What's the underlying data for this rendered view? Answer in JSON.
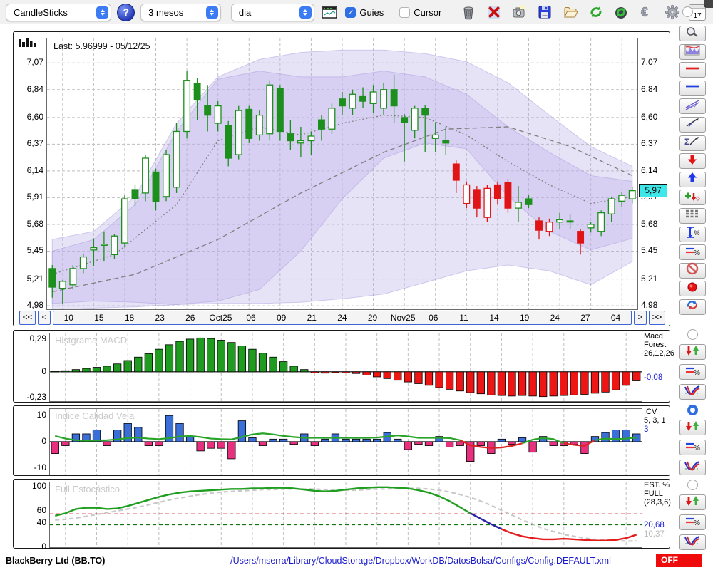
{
  "toolbar": {
    "chart_type_select": {
      "value": "CandleSticks"
    },
    "help_button_label": "?",
    "range_select": {
      "value": "3 mesos"
    },
    "interval_select": {
      "value": "dia"
    },
    "guies_checkbox": {
      "label": "Guies",
      "checked": true
    },
    "cursor_checkbox": {
      "label": "Cursor",
      "checked": false
    },
    "icon_buttons": [
      "mini-chart",
      "trash",
      "delete",
      "snapshot",
      "save",
      "open-file",
      "refresh",
      "reload-data",
      "euro",
      "settings",
      "calendar"
    ],
    "calendar_day": "17",
    "checkmark": "✓"
  },
  "sidebar": {
    "tools": [
      "zoom",
      "indicator-window",
      "red-horizontal-line",
      "blue-horizontal-line",
      "channel-lines",
      "trend-line",
      "sum-trend-line",
      "arrow-down-marker",
      "arrow-up-marker",
      "add-signal-marker",
      "dashed-levels",
      "vertical-measure-percent",
      "percent-levels",
      "disable",
      "record",
      "sync"
    ],
    "panel_controls": [
      {
        "panel": "price",
        "selected": false
      },
      {
        "panel": "macd",
        "selected": false,
        "tools": [
          "signal-arrows",
          "percent-levels",
          "indicator-style"
        ]
      },
      {
        "panel": "icv",
        "selected": true,
        "tools": [
          "signal-arrows",
          "percent-levels",
          "indicator-style"
        ]
      },
      {
        "panel": "stoch",
        "selected": false,
        "tools": [
          "signal-arrows",
          "percent-levels",
          "indicator-style"
        ]
      }
    ]
  },
  "statusbar": {
    "symbol": "BlackBerry Ltd (BB.TO)",
    "config_path": "/Users/mserra/Library/CloudStorage/Dropbox/WorkDB/DatosBolsa/Configs/Config.DEFAULT.xml",
    "off_label": "OFF"
  },
  "chart_data": [
    {
      "id": "price",
      "type": "candlestick",
      "last_label": "Last: 5.96999 - 05/12/25",
      "badge": {
        "text": "5,97",
        "value": 5.97
      },
      "ylim": [
        4.95,
        7.28
      ],
      "yticks": [
        [
          "7,07",
          7.07
        ],
        [
          "6,84",
          6.84
        ],
        [
          "6,60",
          6.6
        ],
        [
          "6,37",
          6.37
        ],
        [
          "6,14",
          6.14
        ],
        [
          "5,91",
          5.91
        ],
        [
          "5,68",
          5.68
        ],
        [
          "5,45",
          5.45
        ],
        [
          "5,21",
          5.21
        ],
        [
          "4,98",
          4.98
        ]
      ],
      "xticks": [
        "10",
        "15",
        "18",
        "23",
        "26",
        "Oct25",
        "06",
        "09",
        "21",
        "24",
        "29",
        "Nov25",
        "06",
        "11",
        "14",
        "19",
        "24",
        "27",
        "04"
      ],
      "nav": {
        "first": "<<",
        "prev": "<",
        "next": ">",
        "last": ">>"
      },
      "up_color": "#1d8f1d",
      "down_color": "#e01414",
      "band_color": "#b9aee8",
      "band_edge_color": "#a99ee0",
      "band_outer": [
        [
          0,
          5.55,
          4.94
        ],
        [
          4,
          5.62,
          4.96
        ],
        [
          8,
          5.92,
          4.97
        ],
        [
          12,
          6.55,
          4.99
        ],
        [
          16,
          6.95,
          5.0
        ],
        [
          20,
          7.1,
          5.0
        ],
        [
          24,
          7.16,
          5.01
        ],
        [
          28,
          7.18,
          5.04
        ],
        [
          32,
          7.18,
          5.08
        ],
        [
          36,
          7.15,
          5.18
        ],
        [
          40,
          7.08,
          5.28
        ],
        [
          44,
          6.9,
          5.33
        ],
        [
          48,
          6.62,
          5.28
        ],
        [
          52,
          6.35,
          5.16
        ],
        [
          56,
          6.18,
          5.36
        ]
      ],
      "band_inner": [
        [
          0,
          5.45,
          5.0
        ],
        [
          4,
          5.55,
          5.02
        ],
        [
          8,
          5.85,
          5.01
        ],
        [
          12,
          6.48,
          4.99
        ],
        [
          16,
          6.93,
          5.02
        ],
        [
          20,
          7.0,
          5.12
        ],
        [
          24,
          6.95,
          5.45
        ],
        [
          28,
          6.95,
          5.9
        ],
        [
          32,
          7.0,
          6.25
        ],
        [
          36,
          6.95,
          6.38
        ],
        [
          40,
          6.8,
          6.33
        ],
        [
          44,
          6.52,
          5.92
        ],
        [
          48,
          6.3,
          5.62
        ],
        [
          52,
          6.1,
          5.46
        ],
        [
          56,
          6.05,
          5.56
        ]
      ],
      "ma_slow": [
        [
          0,
          5.1
        ],
        [
          8,
          5.25
        ],
        [
          16,
          5.55
        ],
        [
          24,
          5.95
        ],
        [
          32,
          6.3
        ],
        [
          38,
          6.5
        ],
        [
          44,
          6.52
        ],
        [
          50,
          6.35
        ],
        [
          56,
          6.1
        ]
      ],
      "ma_fast": [
        [
          0,
          5.25
        ],
        [
          6,
          5.42
        ],
        [
          12,
          5.85
        ],
        [
          16,
          6.4
        ],
        [
          20,
          6.52
        ],
        [
          24,
          6.45
        ],
        [
          28,
          6.55
        ],
        [
          32,
          6.62
        ],
        [
          36,
          6.6
        ],
        [
          40,
          6.45
        ],
        [
          44,
          6.22
        ],
        [
          48,
          6.02
        ],
        [
          52,
          5.86
        ],
        [
          56,
          5.92
        ]
      ],
      "candles": [
        [
          5.3,
          5.33,
          5.05,
          5.14,
          "G"
        ],
        [
          5.13,
          5.2,
          5.0,
          5.19,
          "g"
        ],
        [
          5.16,
          5.33,
          5.12,
          5.3,
          "g"
        ],
        [
          5.3,
          5.43,
          5.26,
          5.4,
          "g"
        ],
        [
          5.46,
          5.56,
          5.32,
          5.48,
          "g"
        ],
        [
          5.5,
          5.62,
          5.36,
          5.51,
          "g"
        ],
        [
          5.42,
          5.6,
          5.38,
          5.58,
          "g"
        ],
        [
          5.52,
          5.93,
          5.48,
          5.9,
          "g"
        ],
        [
          5.98,
          6.02,
          5.84,
          5.9,
          "G"
        ],
        [
          5.95,
          6.28,
          5.88,
          6.25,
          "g"
        ],
        [
          6.13,
          6.16,
          5.8,
          5.88,
          "G"
        ],
        [
          5.92,
          6.32,
          5.88,
          6.28,
          "g"
        ],
        [
          6.0,
          6.55,
          5.95,
          6.48,
          "g"
        ],
        [
          6.48,
          7.0,
          6.42,
          6.92,
          "g"
        ],
        [
          6.89,
          6.94,
          6.58,
          6.75,
          "G"
        ],
        [
          6.7,
          6.88,
          6.48,
          6.62,
          "G"
        ],
        [
          6.55,
          6.74,
          6.48,
          6.7,
          "g"
        ],
        [
          6.53,
          6.57,
          6.18,
          6.25,
          "G"
        ],
        [
          6.28,
          6.7,
          6.24,
          6.66,
          "g"
        ],
        [
          6.67,
          6.7,
          6.38,
          6.42,
          "G"
        ],
        [
          6.45,
          6.66,
          6.4,
          6.62,
          "g"
        ],
        [
          6.46,
          6.92,
          6.4,
          6.88,
          "g"
        ],
        [
          6.85,
          6.88,
          6.4,
          6.48,
          "G"
        ],
        [
          6.46,
          6.58,
          6.32,
          6.4,
          "G"
        ],
        [
          6.38,
          6.52,
          6.26,
          6.4,
          "g"
        ],
        [
          6.4,
          6.48,
          6.28,
          6.44,
          "g"
        ],
        [
          6.58,
          6.62,
          6.4,
          6.5,
          "G"
        ],
        [
          6.5,
          6.72,
          6.46,
          6.68,
          "g"
        ],
        [
          6.76,
          6.82,
          6.62,
          6.7,
          "G"
        ],
        [
          6.68,
          6.84,
          6.62,
          6.8,
          "g"
        ],
        [
          6.78,
          6.86,
          6.68,
          6.74,
          "G"
        ],
        [
          6.72,
          6.88,
          6.64,
          6.82,
          "g"
        ],
        [
          6.68,
          6.9,
          6.62,
          6.84,
          "g"
        ],
        [
          6.84,
          6.97,
          6.55,
          6.7,
          "G"
        ],
        [
          6.6,
          6.63,
          6.22,
          6.56,
          "G"
        ],
        [
          6.49,
          6.7,
          6.42,
          6.68,
          "g"
        ],
        [
          6.68,
          6.71,
          6.3,
          6.62,
          "G"
        ],
        [
          6.45,
          6.56,
          6.3,
          6.42,
          "g"
        ],
        [
          6.4,
          6.52,
          6.28,
          6.38,
          "G"
        ],
        [
          6.2,
          6.23,
          5.95,
          6.06,
          "R"
        ],
        [
          5.86,
          6.05,
          5.82,
          6.02,
          "r"
        ],
        [
          5.98,
          6.01,
          5.74,
          5.82,
          "R"
        ],
        [
          5.74,
          6.02,
          5.7,
          5.99,
          "r"
        ],
        [
          6.02,
          6.05,
          5.85,
          5.9,
          "R"
        ],
        [
          6.04,
          6.07,
          5.78,
          5.82,
          "R"
        ],
        [
          5.82,
          6.01,
          5.7,
          5.87,
          "g"
        ],
        [
          5.9,
          5.93,
          5.82,
          5.85,
          "G"
        ],
        [
          5.71,
          5.74,
          5.55,
          5.63,
          "R"
        ],
        [
          5.62,
          5.73,
          5.58,
          5.7,
          "r"
        ],
        [
          5.7,
          5.78,
          5.64,
          5.72,
          "g"
        ],
        [
          5.71,
          5.77,
          5.64,
          5.7,
          "G"
        ],
        [
          5.62,
          5.64,
          5.42,
          5.52,
          "R"
        ],
        [
          5.65,
          5.7,
          5.61,
          5.68,
          "g"
        ],
        [
          5.62,
          5.8,
          5.58,
          5.78,
          "g"
        ],
        [
          5.77,
          5.92,
          5.7,
          5.9,
          "g"
        ],
        [
          5.88,
          5.96,
          5.83,
          5.93,
          "g"
        ],
        [
          5.9,
          6.0,
          5.86,
          5.97,
          "g"
        ]
      ]
    },
    {
      "id": "macd",
      "type": "bar",
      "watermark": "Histgrama MACD",
      "label1": "Macd",
      "label2": "Forest",
      "label3": "26,12,26",
      "value": "-0,08",
      "ylim": [
        -0.26,
        0.34
      ],
      "yticks": [
        [
          "0,29",
          0.29
        ],
        [
          "0",
          0
        ],
        [
          "-0,23",
          -0.23
        ]
      ],
      "pos_color": "#1f9c1f",
      "neg_color": "#ee1515",
      "values": [
        0.005,
        0.01,
        0.02,
        0.03,
        0.04,
        0.05,
        0.07,
        0.1,
        0.13,
        0.16,
        0.2,
        0.24,
        0.27,
        0.29,
        0.3,
        0.295,
        0.28,
        0.26,
        0.23,
        0.2,
        0.165,
        0.13,
        0.09,
        0.05,
        0.02,
        -0.01,
        -0.012,
        -0.008,
        -0.01,
        -0.015,
        -0.03,
        -0.045,
        -0.06,
        -0.075,
        -0.09,
        -0.105,
        -0.12,
        -0.14,
        -0.155,
        -0.17,
        -0.185,
        -0.195,
        -0.205,
        -0.21,
        -0.215,
        -0.21,
        -0.215,
        -0.22,
        -0.215,
        -0.21,
        -0.205,
        -0.2,
        -0.19,
        -0.18,
        -0.16,
        -0.12,
        -0.08
      ]
    },
    {
      "id": "icv",
      "type": "bar",
      "watermark": "Indice Calidad Vela",
      "label1": "ICV",
      "label2": "5, 3, 1",
      "value": "3",
      "ylim": [
        -12.5,
        12.5
      ],
      "yticks": [
        [
          "10",
          10
        ],
        [
          "0",
          0
        ],
        [
          "-10",
          -10
        ]
      ],
      "pos_color": "#3a6fd8",
      "neg_color": "#e8307e",
      "line_color": "#28a428",
      "line_neg_color": "#dd2222",
      "bars": [
        -4.5,
        -1.5,
        3,
        3,
        4.5,
        -1.5,
        4.5,
        7,
        5.5,
        -1.5,
        -1.5,
        10,
        7,
        2,
        -3.5,
        -2.5,
        -2.5,
        -6.5,
        8,
        1.5,
        -1.5,
        1,
        1,
        -1,
        3,
        -1.5,
        1,
        3,
        1,
        1,
        1,
        1,
        3.5,
        1,
        -3,
        -1,
        -1.5,
        2,
        -2,
        -1.5,
        -7.5,
        -1.5,
        -4.5,
        1,
        -1,
        1.5,
        -4,
        2,
        -1.5,
        -1.5,
        -1,
        -4.5,
        2,
        3.5,
        4.5,
        4.5,
        3
      ],
      "line": [
        2.2,
        1.2,
        0.6,
        0.4,
        0.5,
        0.6,
        0.9,
        1.4,
        1.6,
        1.2,
        1.0,
        1.4,
        2.0,
        2.2,
        1.8,
        1.2,
        1.0,
        0.9,
        1.8,
        2.8,
        3.2,
        2.8,
        2.2,
        1.8,
        1.5,
        1.5,
        1.5,
        1.5,
        1.5,
        1.5,
        1.5,
        1.6,
        2.0,
        2.4,
        2.0,
        1.5,
        1.5,
        1.5,
        1.4,
        0.6,
        -1.4,
        -2.0,
        -2.4,
        -2.2,
        -1.6,
        -0.6,
        0.8,
        1.4,
        1.0,
        -0.6,
        -1.2,
        -1.6,
        0.6,
        1.2,
        1.0,
        1.2,
        1.6
      ]
    },
    {
      "id": "stoch",
      "type": "line",
      "watermark": "Full Estocástico",
      "label1": "EST. %",
      "label2": "FULL",
      "label3": "(28,3,6)",
      "value": "20,68",
      "value2": "10,37",
      "ylim": [
        0,
        107
      ],
      "yticks": [
        [
          "100",
          100
        ],
        [
          "60",
          60
        ],
        [
          "40",
          40
        ],
        [
          "0",
          0
        ]
      ],
      "hlines": [
        {
          "value": 55,
          "color": "#dd2222"
        },
        {
          "value": 37,
          "color": "#117711"
        }
      ],
      "k_color_ranges": [
        {
          "from": 0,
          "to": 40,
          "color": "#1f9e1f"
        },
        {
          "from": 40,
          "to": 43,
          "color": "#2a22a8"
        },
        {
          "from": 43,
          "to": 56,
          "color": "#e51c1c"
        }
      ],
      "d_color": "#c8c8c8",
      "k": [
        52,
        56,
        63,
        65,
        65,
        63,
        64,
        68,
        73,
        78,
        83,
        87,
        90,
        92,
        93,
        94,
        95,
        96,
        96,
        97,
        97,
        98,
        98,
        97,
        95,
        93,
        92,
        93,
        95,
        97,
        98,
        99,
        99,
        98,
        97,
        94,
        90,
        84,
        76,
        66,
        56,
        47,
        38,
        30,
        23,
        18,
        15,
        13,
        13,
        14,
        13,
        12,
        11,
        11,
        12,
        15,
        20.7
      ],
      "d": [
        45,
        46,
        48,
        51,
        54,
        57,
        60,
        63,
        66,
        70,
        74,
        78,
        81,
        84,
        87,
        89,
        91,
        92,
        93,
        94,
        95,
        95,
        96,
        96,
        96,
        96,
        95,
        95,
        94,
        94,
        95,
        96,
        96,
        97,
        97,
        97,
        96,
        94,
        91,
        87,
        82,
        76,
        69,
        61,
        53,
        45,
        38,
        31,
        26,
        21,
        18,
        15,
        13,
        12,
        11,
        10,
        10.4
      ]
    }
  ]
}
